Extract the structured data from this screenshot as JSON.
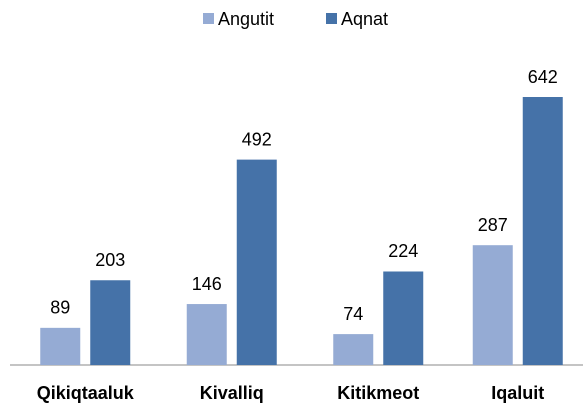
{
  "chart_data": {
    "type": "bar",
    "categories": [
      "Qikiqtaaluk",
      "Kivalliq",
      "Kitikmeot",
      "Iqaluit"
    ],
    "series": [
      {
        "name": "Angutit",
        "color": "#95abd4",
        "values": [
          89,
          146,
          74,
          287
        ]
      },
      {
        "name": "Aqnat",
        "color": "#4572a8",
        "values": [
          203,
          492,
          224,
          642
        ]
      }
    ],
    "legend": "top"
  }
}
